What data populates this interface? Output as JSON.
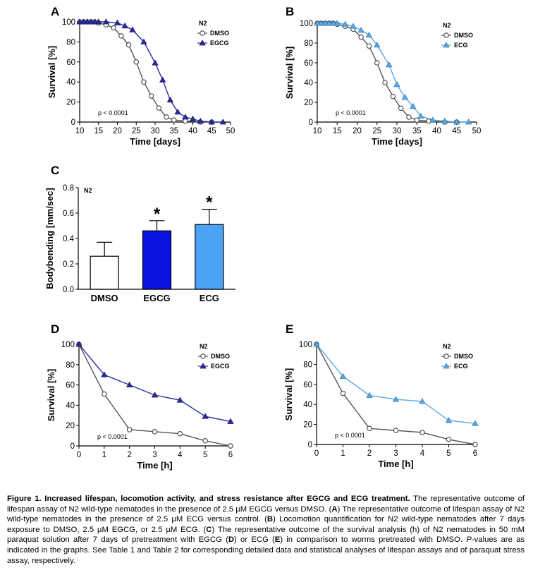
{
  "chart_data": [
    {
      "id": "A",
      "type": "line",
      "letter": "A",
      "xlabel": "Time [days]",
      "ylabel": "Survival [%]",
      "xlim": [
        10,
        50
      ],
      "ylim": [
        0,
        100
      ],
      "xticks": [
        10,
        15,
        20,
        25,
        30,
        35,
        40,
        45,
        50
      ],
      "yticks": [
        0,
        20,
        40,
        60,
        80,
        100
      ],
      "legend_title": "N2",
      "annotation": "p < 0.0001",
      "series": [
        {
          "name": "DMSO",
          "color": "#555555",
          "marker": "circle",
          "x": [
            10,
            11,
            12,
            13,
            14,
            15,
            17,
            19,
            21,
            23,
            25,
            27,
            29,
            31,
            33,
            35,
            38,
            42,
            45
          ],
          "y": [
            100,
            100,
            100,
            100,
            100,
            99,
            97,
            94,
            86,
            77,
            60,
            40,
            26,
            14,
            5,
            2,
            1,
            0,
            0
          ]
        },
        {
          "name": "EGCG",
          "color": "#2b2ba0",
          "marker": "triangle",
          "x": [
            10,
            11,
            12,
            13,
            14,
            15,
            17,
            20,
            22,
            24,
            27,
            30,
            32,
            34,
            36,
            38,
            40,
            42,
            45,
            48
          ],
          "y": [
            100,
            100,
            100,
            100,
            100,
            100,
            100,
            99,
            96,
            92,
            80,
            59,
            42,
            22,
            10,
            5,
            3,
            1,
            0,
            0
          ]
        }
      ]
    },
    {
      "id": "B",
      "type": "line",
      "letter": "B",
      "xlabel": "Time [days]",
      "ylabel": "Survival [%]",
      "xlim": [
        10,
        50
      ],
      "ylim": [
        0,
        100
      ],
      "xticks": [
        10,
        15,
        20,
        25,
        30,
        35,
        40,
        45,
        50
      ],
      "yticks": [
        0,
        20,
        40,
        60,
        80,
        100
      ],
      "legend_title": "N2",
      "annotation": "p < 0.0001",
      "series": [
        {
          "name": "DMSO",
          "color": "#555555",
          "marker": "circle",
          "x": [
            10,
            11,
            12,
            13,
            14,
            15,
            17,
            19,
            21,
            23,
            25,
            27,
            29,
            31,
            33,
            35,
            38,
            42,
            45
          ],
          "y": [
            100,
            100,
            100,
            100,
            100,
            99,
            97,
            94,
            86,
            77,
            60,
            40,
            26,
            14,
            5,
            2,
            1,
            0,
            0
          ]
        },
        {
          "name": "ECG",
          "color": "#5aa9e6",
          "marker": "triangle",
          "x": [
            10,
            11,
            12,
            13,
            14,
            15,
            17,
            19,
            21,
            23,
            25,
            28,
            30,
            32,
            34,
            36,
            39,
            42,
            45,
            48
          ],
          "y": [
            100,
            100,
            100,
            100,
            100,
            100,
            99,
            97,
            93,
            88,
            78,
            58,
            38,
            25,
            16,
            6,
            2,
            1,
            0,
            0
          ]
        }
      ]
    },
    {
      "id": "C",
      "type": "bar",
      "letter": "C",
      "ylabel": "Bodybending [mm/sec]",
      "ylim": [
        0,
        0.8
      ],
      "yticks": [
        "0.0",
        "0.2",
        "0.4",
        "0.6",
        "0.8"
      ],
      "legend_title": "N2",
      "categories": [
        "DMSO",
        "EGCG",
        "ECG"
      ],
      "values": [
        0.26,
        0.46,
        0.51
      ],
      "errors": [
        0.11,
        0.08,
        0.12
      ],
      "colors": [
        "#ffffff",
        "#0a14e0",
        "#4aa3f5"
      ],
      "significance": [
        "",
        "*",
        "*"
      ]
    },
    {
      "id": "D",
      "type": "line",
      "letter": "D",
      "xlabel": "Time [h]",
      "ylabel": "Survival [%]",
      "xlim": [
        0,
        6
      ],
      "ylim": [
        0,
        100
      ],
      "xticks": [
        0,
        1,
        2,
        3,
        4,
        5,
        6
      ],
      "yticks": [
        0,
        20,
        40,
        60,
        80,
        100
      ],
      "legend_title": "N2",
      "annotation": "p < 0.0001",
      "series": [
        {
          "name": "DMSO",
          "color": "#555555",
          "marker": "circle",
          "x": [
            0,
            1,
            2,
            3,
            4,
            5,
            6
          ],
          "y": [
            100,
            51,
            16,
            14,
            12,
            5,
            0
          ]
        },
        {
          "name": "EGCG",
          "color": "#2b2ba0",
          "marker": "triangle",
          "x": [
            0,
            1,
            2,
            3,
            4,
            5,
            6
          ],
          "y": [
            100,
            70,
            60,
            50,
            45,
            29,
            24
          ]
        }
      ]
    },
    {
      "id": "E",
      "type": "line",
      "letter": "E",
      "xlabel": "Time [h]",
      "ylabel": "Survival [%]",
      "xlim": [
        0,
        6
      ],
      "ylim": [
        0,
        100
      ],
      "xticks": [
        0,
        1,
        2,
        3,
        4,
        5,
        6
      ],
      "yticks": [
        0,
        20,
        40,
        60,
        80,
        100
      ],
      "legend_title": "N2",
      "annotation": "p < 0.0001",
      "series": [
        {
          "name": "DMSO",
          "color": "#555555",
          "marker": "circle",
          "x": [
            0,
            1,
            2,
            3,
            4,
            5,
            6
          ],
          "y": [
            100,
            51,
            16,
            14,
            12,
            5,
            0
          ]
        },
        {
          "name": "ECG",
          "color": "#5aa9e6",
          "marker": "triangle",
          "x": [
            0,
            1,
            2,
            3,
            4,
            5,
            6
          ],
          "y": [
            100,
            68,
            49,
            45,
            43,
            24,
            21
          ]
        }
      ]
    }
  ],
  "caption": {
    "title": "Figure 1. Increased lifespan, locomotion activity, and stress resistance after EGCG and ECG treatment.",
    "s1": " The representative outcome of lifespan assay of N2 wild-type nematodes in the presence of 2.5 µM EGCG versus DMSO. (",
    "A": "A",
    "s2": ") The representative outcome of lifespan assay of N2 wild-type nematodes in the presence of 2.5 µM ECG versus control. (",
    "B": "B",
    "s3": ") Locomotion quantification for N2 wild-type nematodes after 7 days exposure to DMSO, 2.5 µM EGCG, or 2.5 µM ECG. (",
    "C": "C",
    "s4": ") The representative outcome of the survival analysis (h) of N2 nematodes in 50 mM paraquat solution after 7 days of pretreatment with EGCG (",
    "D": "D",
    "s5": ") or ECG (",
    "E": "E",
    "s6": ") in comparison to worms pretreated with DMSO. ",
    "p_italic": "P",
    "s7": "-values are as indicated in the graphs. See Table 1 and Table 2 for corresponding detailed data and statistical analyses of lifespan assays and of paraquat stress assay, respectively."
  }
}
